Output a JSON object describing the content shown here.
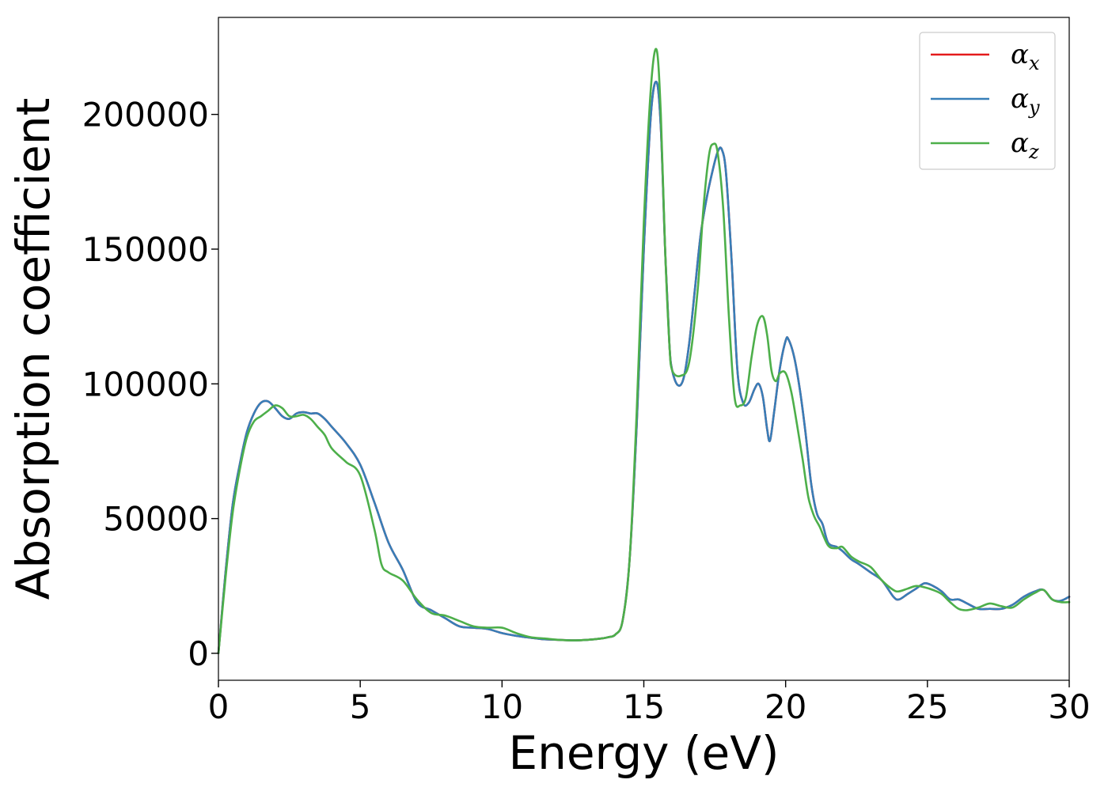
{
  "chart_data": {
    "type": "line",
    "xlabel": "Energy (eV)",
    "ylabel": "Absorption coefficient",
    "xlim": [
      0,
      30
    ],
    "ylim": [
      -10000,
      236000
    ],
    "xticks": [
      0,
      5,
      10,
      15,
      20,
      25,
      30
    ],
    "yticks": [
      0,
      50000,
      100000,
      150000,
      200000
    ],
    "grid": false,
    "legend_position": "top-right",
    "series": [
      {
        "name": "α_x",
        "symbol": "α",
        "subscript": "x",
        "color": "#e41a1c",
        "x": [
          0,
          0.25,
          0.5,
          0.75,
          1.0,
          1.25,
          1.5,
          1.75,
          2.0,
          2.25,
          2.5,
          2.75,
          3.0,
          3.25,
          3.5,
          3.75,
          4.0,
          4.5,
          5.0,
          5.5,
          6.0,
          6.5,
          7.0,
          7.5,
          8.0,
          8.5,
          9.0,
          9.5,
          10.0,
          10.5,
          11.0,
          11.5,
          12.0,
          12.5,
          13.0,
          13.5,
          13.75,
          14.0,
          14.25,
          14.5,
          14.75,
          15.0,
          15.25,
          15.45,
          15.6,
          15.75,
          15.9,
          16.0,
          16.2,
          16.4,
          16.6,
          16.8,
          17.0,
          17.2,
          17.4,
          17.6,
          17.75,
          17.9,
          18.1,
          18.3,
          18.5,
          18.7,
          18.9,
          19.05,
          19.2,
          19.35,
          19.45,
          19.6,
          19.8,
          20.0,
          20.1,
          20.3,
          20.5,
          20.7,
          20.9,
          21.1,
          21.3,
          21.5,
          21.8,
          22.0,
          22.3,
          22.6,
          23.0,
          23.4,
          23.8,
          24.0,
          24.3,
          24.6,
          24.9,
          25.2,
          25.5,
          25.8,
          26.1,
          26.4,
          26.8,
          27.2,
          27.6,
          28.0,
          28.4,
          28.8,
          29.1,
          29.4,
          29.7,
          30.0
        ],
        "y": [
          0,
          30000,
          55000,
          70000,
          82000,
          89000,
          93000,
          93500,
          91000,
          88000,
          87000,
          89000,
          89500,
          89000,
          89000,
          87000,
          84000,
          78000,
          70000,
          56000,
          41000,
          31000,
          19000,
          16000,
          13000,
          10000,
          9500,
          9000,
          7500,
          6500,
          5800,
          5200,
          5000,
          4800,
          5000,
          5500,
          6000,
          7000,
          12000,
          35000,
          85000,
          150000,
          200000,
          212000,
          195000,
          150000,
          115000,
          105000,
          99500,
          102000,
          115000,
          135000,
          155000,
          168000,
          178000,
          186000,
          187000,
          178000,
          145000,
          105000,
          93000,
          93000,
          98000,
          100000,
          95000,
          83000,
          79000,
          90000,
          106000,
          116000,
          116500,
          110000,
          98000,
          82000,
          63000,
          52000,
          48000,
          41000,
          39500,
          38000,
          35000,
          33000,
          30000,
          27000,
          21000,
          20000,
          22000,
          24000,
          26000,
          25000,
          23000,
          20000,
          20000,
          18500,
          16500,
          16500,
          16500,
          18000,
          21000,
          23000,
          23500,
          20000,
          19500,
          21000
        ]
      },
      {
        "name": "α_y",
        "symbol": "α",
        "subscript": "y",
        "color": "#377eb8",
        "x": [
          0,
          0.25,
          0.5,
          0.75,
          1.0,
          1.25,
          1.5,
          1.75,
          2.0,
          2.25,
          2.5,
          2.75,
          3.0,
          3.25,
          3.5,
          3.75,
          4.0,
          4.5,
          5.0,
          5.5,
          6.0,
          6.5,
          7.0,
          7.5,
          8.0,
          8.5,
          9.0,
          9.5,
          10.0,
          10.5,
          11.0,
          11.5,
          12.0,
          12.5,
          13.0,
          13.5,
          13.75,
          14.0,
          14.25,
          14.5,
          14.75,
          15.0,
          15.25,
          15.45,
          15.6,
          15.75,
          15.9,
          16.0,
          16.2,
          16.4,
          16.6,
          16.8,
          17.0,
          17.2,
          17.4,
          17.6,
          17.75,
          17.9,
          18.1,
          18.3,
          18.5,
          18.7,
          18.9,
          19.05,
          19.2,
          19.35,
          19.45,
          19.6,
          19.8,
          20.0,
          20.1,
          20.3,
          20.5,
          20.7,
          20.9,
          21.1,
          21.3,
          21.5,
          21.8,
          22.0,
          22.3,
          22.6,
          23.0,
          23.4,
          23.8,
          24.0,
          24.3,
          24.6,
          24.9,
          25.2,
          25.5,
          25.8,
          26.1,
          26.4,
          26.8,
          27.2,
          27.6,
          28.0,
          28.4,
          28.8,
          29.1,
          29.4,
          29.7,
          30.0
        ],
        "y": [
          0,
          30000,
          55000,
          70000,
          82000,
          89000,
          93000,
          93500,
          91000,
          88000,
          87000,
          89000,
          89500,
          89000,
          89000,
          87000,
          84000,
          78000,
          70000,
          56000,
          41000,
          31000,
          19000,
          16000,
          13000,
          10000,
          9500,
          9000,
          7500,
          6500,
          5800,
          5200,
          5000,
          4800,
          5000,
          5500,
          6000,
          7000,
          12000,
          35000,
          85000,
          150000,
          200000,
          212000,
          195000,
          150000,
          115000,
          105000,
          99500,
          102000,
          115000,
          135000,
          155000,
          168000,
          178000,
          186000,
          187000,
          178000,
          145000,
          105000,
          93000,
          93000,
          98000,
          100000,
          95000,
          83000,
          79000,
          90000,
          106000,
          116000,
          116500,
          110000,
          98000,
          82000,
          63000,
          52000,
          48000,
          41000,
          39500,
          38000,
          35000,
          33000,
          30000,
          27000,
          21000,
          20000,
          22000,
          24000,
          26000,
          25000,
          23000,
          20000,
          20000,
          18500,
          16500,
          16500,
          16500,
          18000,
          21000,
          23000,
          23500,
          20000,
          19500,
          21000
        ]
      },
      {
        "name": "α_z",
        "symbol": "α",
        "subscript": "z",
        "color": "#4daf4a",
        "x": [
          0,
          0.25,
          0.5,
          0.75,
          1.0,
          1.25,
          1.5,
          1.75,
          2.0,
          2.25,
          2.5,
          2.75,
          3.0,
          3.25,
          3.5,
          3.75,
          4.0,
          4.5,
          5.0,
          5.5,
          5.75,
          6.0,
          6.5,
          7.0,
          7.5,
          8.0,
          8.5,
          9.0,
          9.5,
          10.0,
          10.5,
          11.0,
          11.5,
          12.0,
          12.5,
          13.0,
          13.5,
          13.75,
          14.0,
          14.25,
          14.5,
          14.75,
          15.0,
          15.25,
          15.45,
          15.6,
          15.75,
          15.9,
          16.0,
          16.3,
          16.6,
          16.9,
          17.1,
          17.3,
          17.45,
          17.6,
          17.8,
          18.0,
          18.2,
          18.4,
          18.6,
          18.8,
          19.0,
          19.2,
          19.35,
          19.5,
          19.65,
          19.8,
          20.0,
          20.2,
          20.4,
          20.6,
          20.8,
          21.0,
          21.2,
          21.5,
          21.8,
          22.0,
          22.3,
          22.6,
          23.0,
          23.4,
          23.8,
          24.0,
          24.3,
          24.6,
          24.9,
          25.2,
          25.5,
          25.8,
          26.1,
          26.4,
          26.8,
          27.2,
          27.6,
          28.0,
          28.4,
          28.8,
          29.1,
          29.4,
          29.7,
          30.0
        ],
        "y": [
          0,
          28000,
          52000,
          68000,
          80000,
          86000,
          88000,
          90000,
          92000,
          91000,
          88000,
          88000,
          88500,
          87000,
          84000,
          81000,
          76000,
          71000,
          66000,
          46000,
          33000,
          30000,
          27000,
          20000,
          15000,
          14000,
          12000,
          10000,
          9500,
          9500,
          7500,
          6000,
          5500,
          5000,
          4800,
          5000,
          5500,
          6000,
          7000,
          12000,
          35000,
          90000,
          160000,
          210000,
          224000,
          200000,
          150000,
          115000,
          105000,
          103000,
          108000,
          135000,
          165000,
          185000,
          189000,
          186000,
          165000,
          125000,
          95000,
          92000,
          95000,
          110000,
          122000,
          125000,
          118000,
          105000,
          101000,
          104000,
          104000,
          97000,
          85000,
          72000,
          58000,
          51000,
          47000,
          40000,
          39000,
          39500,
          36000,
          34000,
          32000,
          27000,
          23500,
          23000,
          24000,
          25000,
          24500,
          23500,
          22000,
          19000,
          16500,
          16000,
          17000,
          18500,
          17500,
          17000,
          20000,
          22500,
          23500,
          20000,
          19000,
          19000
        ]
      }
    ]
  }
}
